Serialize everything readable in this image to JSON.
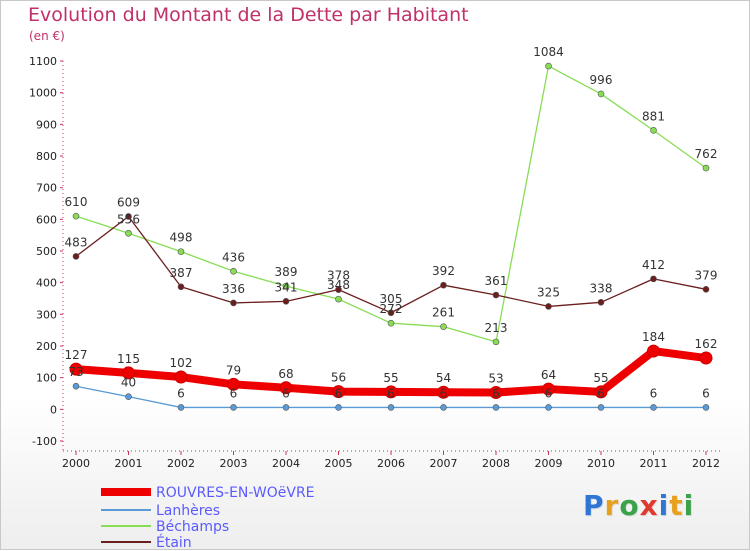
{
  "chart_data": {
    "type": "line",
    "title": "Evolution du Montant de la Dette par Habitant",
    "subtitle": "(en €)",
    "x": [
      "2000",
      "2001",
      "2002",
      "2003",
      "2004",
      "2005",
      "2006",
      "2007",
      "2008",
      "2009",
      "2010",
      "2011",
      "2012"
    ],
    "ylim": [
      -100,
      1100
    ],
    "yticks": [
      -100,
      0,
      100,
      200,
      300,
      400,
      500,
      600,
      700,
      800,
      900,
      1000,
      1100
    ],
    "grid": false,
    "legend_position": "bottom-left",
    "series": [
      {
        "name": "ROUVRES-EN-WOëVRE",
        "color": "#ee0000",
        "values": [
          127,
          115,
          102,
          79,
          68,
          56,
          55,
          54,
          53,
          64,
          55,
          184,
          162
        ],
        "labels": [
          "127",
          "115",
          "102",
          "79",
          "68",
          "56",
          "55",
          "54",
          "53",
          "64",
          "55",
          "184",
          "162"
        ]
      },
      {
        "name": "Lanhères",
        "color": "#5b9bd5",
        "values": [
          73,
          40,
          6,
          6,
          6,
          6,
          6,
          6,
          6,
          6,
          6,
          6,
          6
        ],
        "labels": [
          "73",
          "40",
          "6",
          "6",
          "6",
          "6",
          "6",
          "6",
          "6",
          "6",
          "6",
          "6",
          "6"
        ]
      },
      {
        "name": "Béchamps",
        "color": "#88dd55",
        "values": [
          610,
          556,
          498,
          436,
          389,
          348,
          272,
          261,
          213,
          1084,
          996,
          881,
          762
        ],
        "labels": [
          "610",
          "556",
          "498",
          "436",
          "389",
          "348",
          "272",
          "261",
          "213",
          "1084",
          "996",
          "881",
          "762"
        ]
      },
      {
        "name": "Étain",
        "color": "#6b1e1e",
        "values": [
          483,
          609,
          387,
          336,
          341,
          378,
          305,
          392,
          361,
          325,
          338,
          412,
          379
        ],
        "labels": [
          "483",
          "609",
          "387",
          "336",
          "341",
          "378",
          "305",
          "392",
          "361",
          "325",
          "338",
          "412",
          "379"
        ]
      }
    ]
  },
  "logo": {
    "text": "Proxiti",
    "colors": [
      "#2e75d6",
      "#e8a020",
      "#3aa34a",
      "#e03a2e",
      "#2e75d6",
      "#e8a020",
      "#3aa34a"
    ]
  }
}
